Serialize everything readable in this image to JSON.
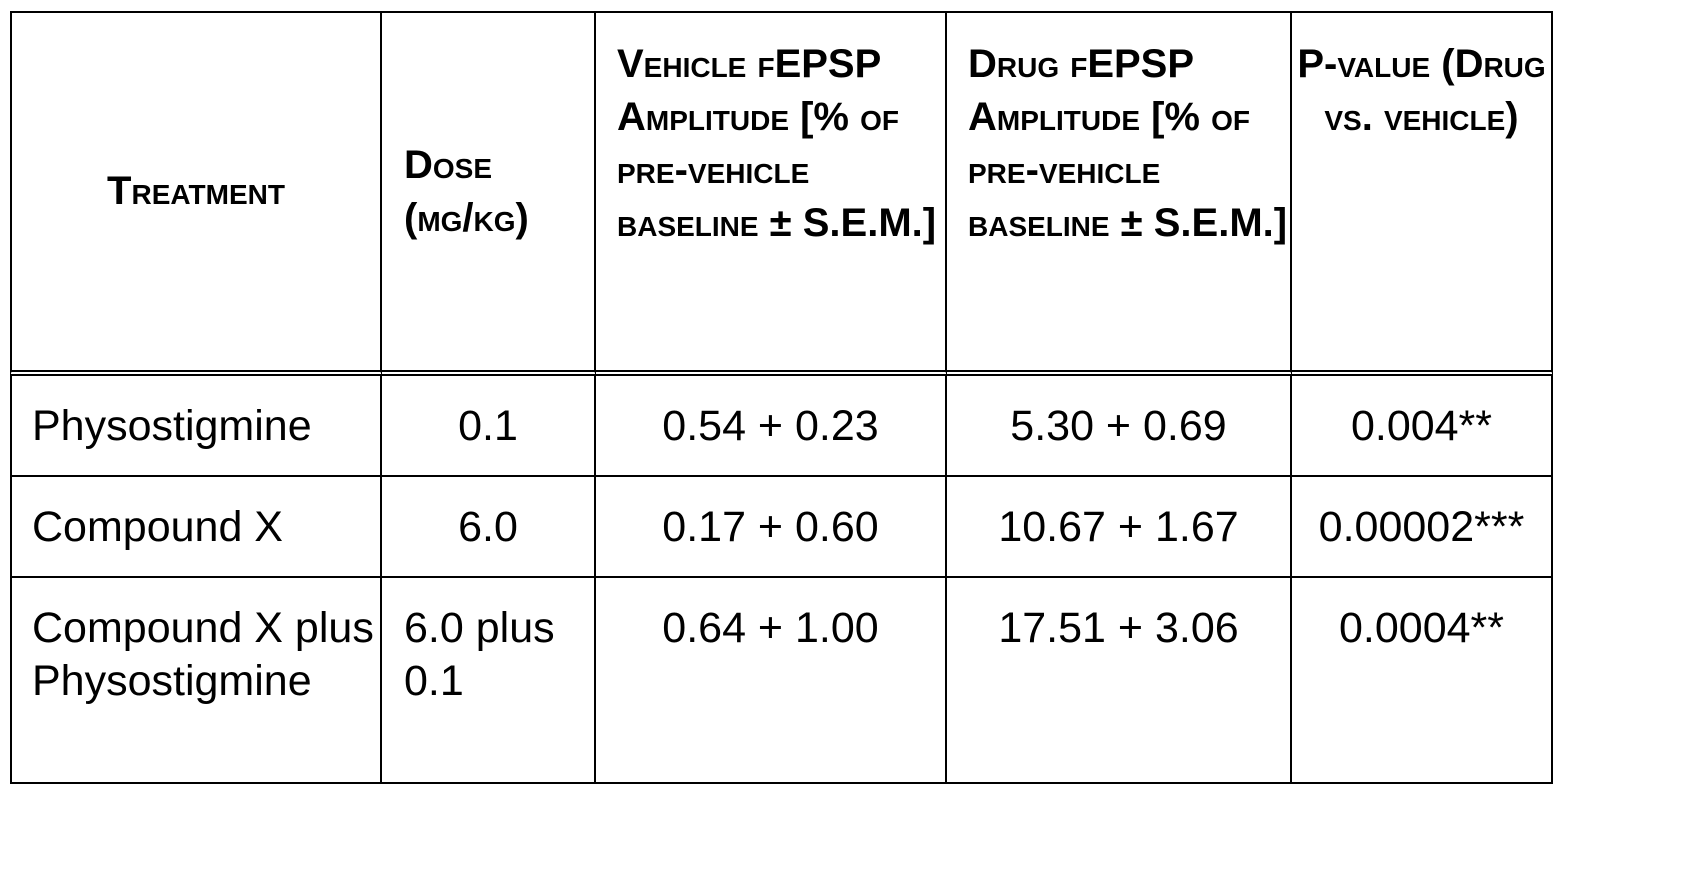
{
  "table": {
    "headers": {
      "treatment": "Treatment",
      "dose": "Dose (mg/kg)",
      "vehicle": "Vehicle fEPSP Amplitude [% of pre-vehicle baseline ± S.E.M.]",
      "drug": "Drug fEPSP Amplitude [% of pre-vehicle baseline ± S.E.M.]",
      "pvalue": "P-value (Drug vs. vehicle)"
    },
    "rows": [
      {
        "treatment": "Physostigmine",
        "dose": "0.1",
        "vehicle": "0.54 + 0.23",
        "drug": "5.30 + 0.69",
        "pvalue": "0.004**"
      },
      {
        "treatment": "Compound X",
        "dose": "6.0",
        "vehicle": "0.17 + 0.60",
        "drug": "10.67 + 1.67",
        "pvalue": "0.00002***"
      },
      {
        "treatment": "Compound X plus Physostigmine",
        "dose": "6.0 plus 0.1",
        "vehicle": "0.64 + 1.00",
        "drug": "17.51 + 3.06",
        "pvalue": "0.0004**"
      }
    ]
  }
}
